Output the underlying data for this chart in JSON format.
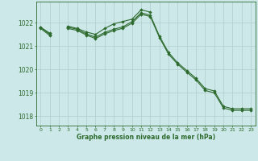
{
  "x": [
    0,
    1,
    2,
    3,
    4,
    5,
    6,
    7,
    8,
    9,
    10,
    11,
    12,
    13,
    14,
    15,
    16,
    17,
    18,
    19,
    20,
    21,
    22,
    23
  ],
  "s1": [
    1021.8,
    1021.55,
    null,
    1021.85,
    1021.75,
    1021.6,
    1021.5,
    1021.75,
    1021.95,
    1022.05,
    1022.15,
    1022.55,
    1022.45,
    null,
    null,
    null,
    null,
    null,
    null,
    null,
    null,
    null,
    null,
    null
  ],
  "s2": [
    1021.8,
    1021.5,
    null,
    1021.8,
    1021.72,
    1021.52,
    1021.38,
    1021.58,
    1021.72,
    1021.82,
    1022.05,
    1022.42,
    1022.32,
    1021.42,
    1020.72,
    1020.28,
    1019.95,
    1019.62,
    1019.18,
    1019.08,
    1018.42,
    1018.32,
    1018.32,
    1018.32
  ],
  "s3": [
    1021.75,
    1021.45,
    null,
    1021.75,
    1021.67,
    1021.47,
    1021.32,
    1021.52,
    1021.66,
    1021.76,
    1021.98,
    1022.36,
    1022.26,
    1021.36,
    1020.65,
    1020.22,
    1019.88,
    1019.55,
    1019.1,
    1019.0,
    1018.35,
    1018.25,
    1018.25,
    1018.25
  ],
  "line_color": "#2d6a2d",
  "bg_color": "#cce8e8",
  "grid_color": "#b0cccc",
  "axis_color": "#2d6a2d",
  "xlabel": "Graphe pression niveau de la mer (hPa)",
  "ylim": [
    1017.6,
    1022.9
  ],
  "yticks": [
    1018,
    1019,
    1020,
    1021,
    1022
  ],
  "xlim": [
    -0.5,
    23.5
  ]
}
